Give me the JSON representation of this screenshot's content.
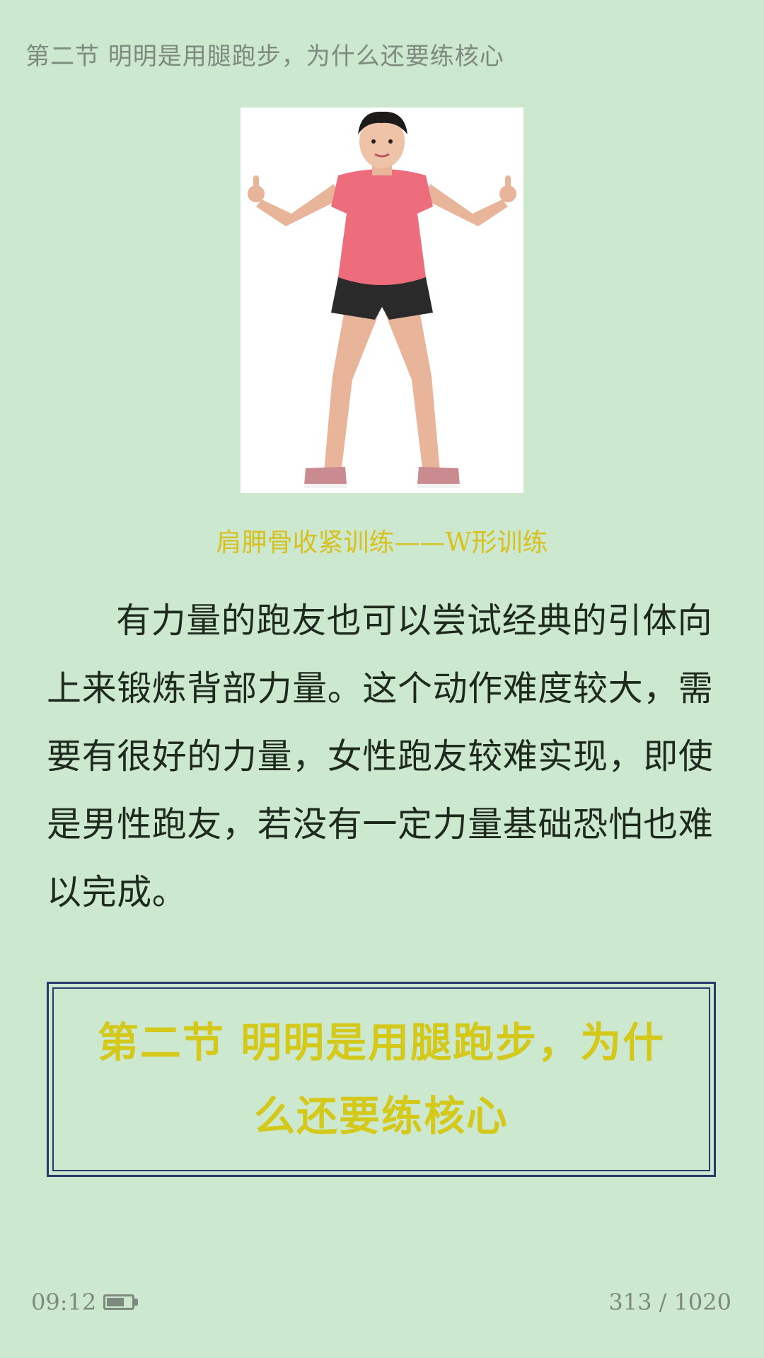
{
  "header": {
    "running_title": "第二节 明明是用腿跑步，为什么还要练核心"
  },
  "figure": {
    "caption": "肩胛骨收紧训练——W形训练"
  },
  "body": {
    "paragraph": "有力量的跑友也可以尝试经典的引体向上来锻炼背部力量。这个动作难度较大，需要有很好的力量，女性跑友较难实现，即使是男性跑友，若没有一定力量基础恐怕也难以完成。"
  },
  "section": {
    "title": "第二节 明明是用腿跑步，为什么还要练核心"
  },
  "status": {
    "time": "09:12",
    "battery_level": 0.7,
    "page_current": "313",
    "page_total": "1020",
    "page_label": "313 / 1020"
  },
  "colors": {
    "background": "#cce8cf",
    "caption": "#d8c020",
    "section_title": "#d4c81a",
    "section_border": "#283a6a",
    "body_text": "#1f2a1f",
    "meta_text": "#7f8a7f"
  }
}
